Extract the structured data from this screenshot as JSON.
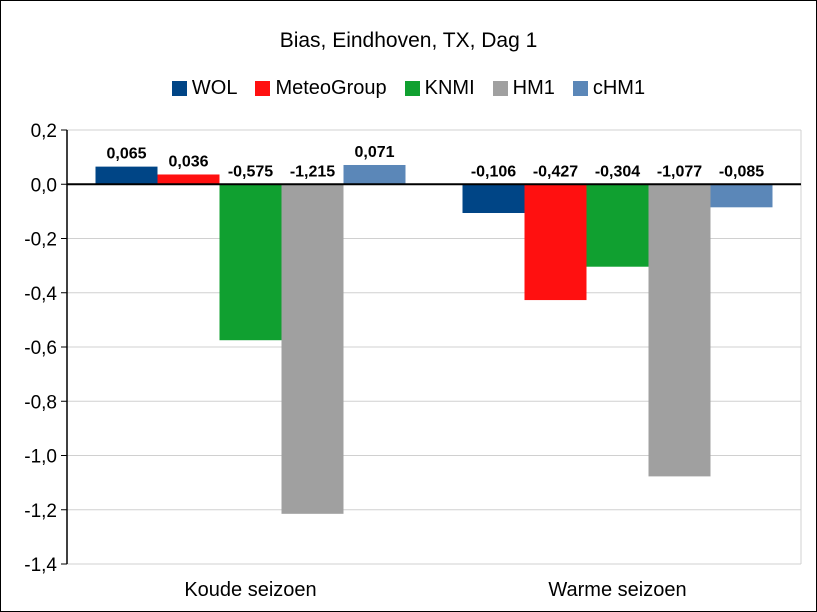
{
  "chart_data": {
    "type": "bar",
    "title": "Bias, Eindhoven, TX, Dag 1",
    "xlabel": "",
    "ylabel": "",
    "categories": [
      "Koude seizoen",
      "Warme seizoen"
    ],
    "series": [
      {
        "name": "WOL",
        "color": "#004586",
        "values": [
          0.065,
          -0.106
        ],
        "labels": [
          "0,065",
          "-0,106"
        ]
      },
      {
        "name": "MeteoGroup",
        "color": "#ff1010",
        "values": [
          0.036,
          -0.427
        ],
        "labels": [
          "0,036",
          "-0,427"
        ]
      },
      {
        "name": "KNMI",
        "color": "#10a030",
        "values": [
          -0.575,
          -0.304
        ],
        "labels": [
          "-0,575",
          "-0,304"
        ]
      },
      {
        "name": "HM1",
        "color": "#a0a0a0",
        "values": [
          -1.215,
          -1.077
        ],
        "labels": [
          "-1,215",
          "-1,077"
        ]
      },
      {
        "name": "cHM1",
        "color": "#5b87b8",
        "values": [
          0.071,
          -0.085
        ],
        "labels": [
          "0,071",
          "-0,085"
        ]
      }
    ],
    "ylim": [
      -1.4,
      0.2
    ],
    "yticks": [
      0.2,
      0.0,
      -0.2,
      -0.4,
      -0.6,
      -0.8,
      -1.0,
      -1.2,
      -1.4
    ],
    "ytick_labels": [
      "0,2",
      "0,0",
      "-0,2",
      "-0,4",
      "-0,6",
      "-0,8",
      "-1,0",
      "-1,2",
      "-1,4"
    ],
    "grid": true,
    "legend_position": "top"
  }
}
